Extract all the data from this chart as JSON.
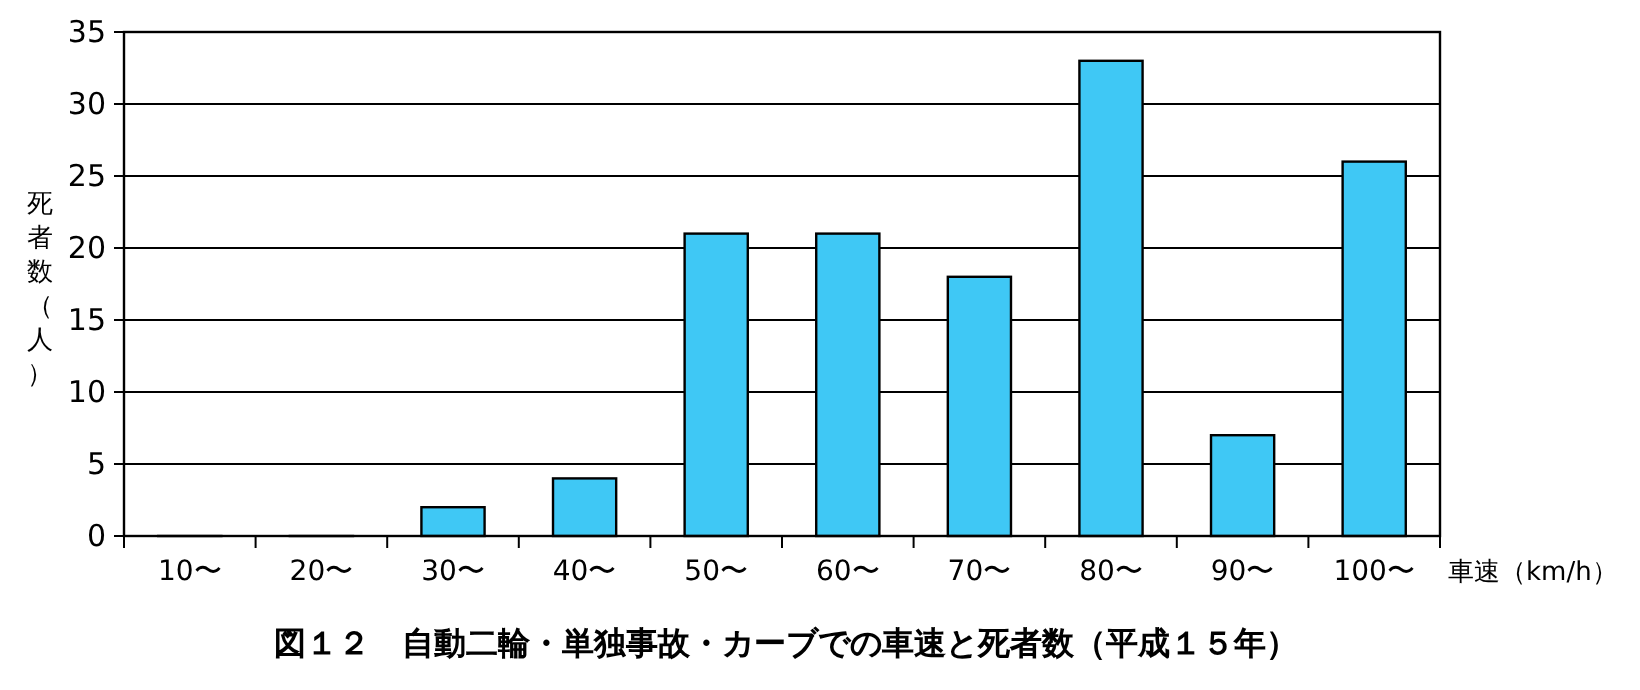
{
  "chart_data": {
    "type": "bar",
    "title": "図１２　自動二輪・単独事故・カーブでの車速と死者数（平成１５年）",
    "xlabel": "車速（km/h）",
    "ylabel": "死者数（人）",
    "categories": [
      "10〜",
      "20〜",
      "30〜",
      "40〜",
      "50〜",
      "60〜",
      "70〜",
      "80〜",
      "90〜",
      "100〜"
    ],
    "values": [
      0,
      0,
      2,
      4,
      21,
      21,
      18,
      33,
      7,
      26
    ],
    "color": "#3fc8f5",
    "ylim": [
      0,
      35
    ],
    "yticks": [
      0,
      5,
      10,
      15,
      20,
      25,
      30,
      35
    ],
    "grid": "y"
  }
}
